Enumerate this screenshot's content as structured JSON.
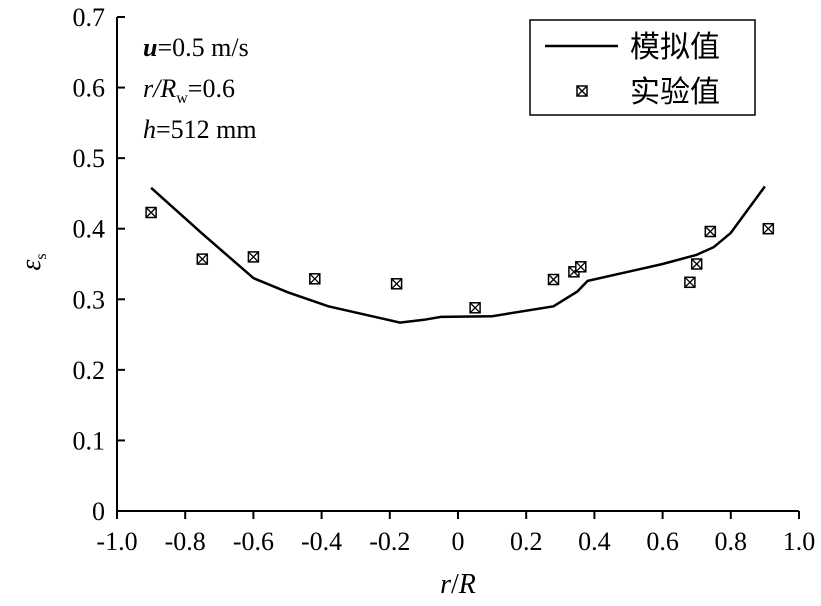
{
  "chart_data": {
    "type": "line",
    "xlabel": {
      "main": "r",
      "sep": "/",
      "tail": "R"
    },
    "ylabel": {
      "main": "ε",
      "sub": "s"
    },
    "xlim": [
      -1.0,
      1.0
    ],
    "ylim": [
      0,
      0.7
    ],
    "x_ticks": [
      "-1.0",
      "-0.8",
      "-0.6",
      "-0.4",
      "-0.2",
      "0",
      "0.2",
      "0.4",
      "0.6",
      "0.8",
      "1.0"
    ],
    "y_ticks": [
      "0",
      "0.1",
      "0.2",
      "0.3",
      "0.4",
      "0.5",
      "0.6",
      "0.7"
    ],
    "grid": false,
    "legend_position": "top-right",
    "annotations": {
      "velocity": {
        "var": "u",
        "text": "=0.5 m/s"
      },
      "ratio": {
        "var": "r/R",
        "sub": "w",
        "text": "=0.6"
      },
      "height": {
        "var": "h",
        "text": "=512 mm"
      }
    },
    "series": [
      {
        "name": "模拟值",
        "kind": "line",
        "color": "#000000",
        "points": [
          [
            -0.9,
            0.458
          ],
          [
            -0.75,
            0.393
          ],
          [
            -0.6,
            0.33
          ],
          [
            -0.5,
            0.31
          ],
          [
            -0.38,
            0.29
          ],
          [
            -0.17,
            0.267
          ],
          [
            -0.1,
            0.271
          ],
          [
            -0.05,
            0.275
          ],
          [
            0.1,
            0.276
          ],
          [
            0.28,
            0.29
          ],
          [
            0.35,
            0.311
          ],
          [
            0.38,
            0.326
          ],
          [
            0.6,
            0.35
          ],
          [
            0.7,
            0.363
          ],
          [
            0.75,
            0.374
          ],
          [
            0.8,
            0.394
          ],
          [
            0.9,
            0.46
          ]
        ]
      },
      {
        "name": "实验值",
        "kind": "scatter",
        "marker": "square-x",
        "color": "#000000",
        "points": [
          [
            -0.9,
            0.423
          ],
          [
            -0.75,
            0.357
          ],
          [
            -0.6,
            0.36
          ],
          [
            -0.42,
            0.329
          ],
          [
            -0.18,
            0.322
          ],
          [
            0.05,
            0.288
          ],
          [
            0.28,
            0.328
          ],
          [
            0.34,
            0.339
          ],
          [
            0.36,
            0.346
          ],
          [
            0.68,
            0.324
          ],
          [
            0.7,
            0.35
          ],
          [
            0.74,
            0.396
          ],
          [
            0.91,
            0.4
          ]
        ]
      }
    ]
  }
}
